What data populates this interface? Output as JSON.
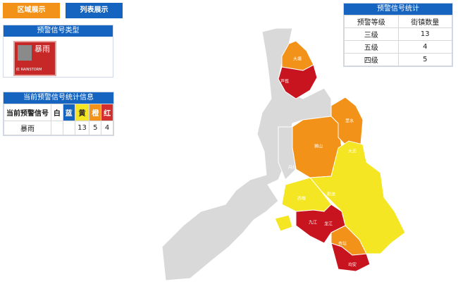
{
  "buttons": [
    "区域展示",
    "列表展示"
  ],
  "signal_type_panel": {
    "title": "预警信号类型",
    "icon_text": "暴雨",
    "icon_caption": "红 RAINSTORM"
  },
  "current_stats": {
    "title": "当前预警信号统计信息",
    "headers": [
      "当前预警信号",
      "白",
      "蓝",
      "黄",
      "橙",
      "红"
    ],
    "row": {
      "name": "暴雨",
      "yellow": 13,
      "orange": 5,
      "red": 4
    }
  },
  "level_stats": {
    "title": "预警信号统计",
    "headers": [
      "预警等级",
      "街镇数量"
    ],
    "rows": [
      [
        "三级",
        13
      ],
      [
        "五级",
        4
      ],
      [
        "四级",
        5
      ]
    ]
  },
  "map": {
    "labels": [
      "大塘",
      "芦苞",
      "狮山",
      "里水",
      "丹灶",
      "西樵",
      "九江",
      "龙江",
      "杏坛",
      "均安",
      "勒流",
      "大沥"
    ]
  }
}
